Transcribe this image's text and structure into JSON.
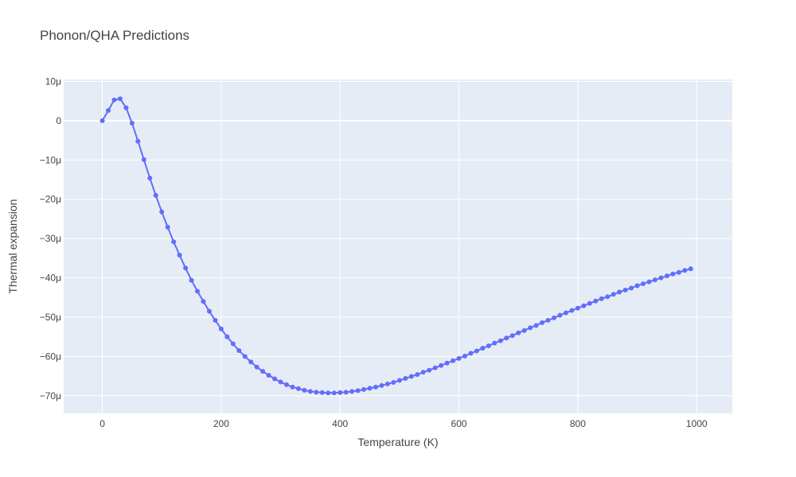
{
  "chart_data": {
    "type": "line",
    "title": "Phonon/QHA Predictions",
    "xlabel": "Temperature (K)",
    "ylabel": "Thermal expansion",
    "xlim": [
      -65,
      1060
    ],
    "ylim": [
      -74.5,
      10.5
    ],
    "x_ticks": [
      0,
      200,
      400,
      600,
      800,
      1000
    ],
    "x_tick_labels": [
      "0",
      "200",
      "400",
      "600",
      "800",
      "1000"
    ],
    "y_ticks": [
      10,
      0,
      -10,
      -20,
      -30,
      -40,
      -50,
      -60,
      -70
    ],
    "y_tick_labels": [
      "10μ",
      "0",
      "−10μ",
      "−20μ",
      "−30μ",
      "−40μ",
      "−50μ",
      "−60μ",
      "−70μ"
    ],
    "y_unit": "μ",
    "grid": true,
    "colors": {
      "line": "#636efa",
      "plot_bg": "#e5ecf6",
      "grid": "#ffffff"
    },
    "series": [
      {
        "x": [
          0,
          10,
          20,
          30,
          40,
          50,
          60,
          70,
          80,
          90,
          100,
          110,
          120,
          130,
          140,
          150,
          160,
          170,
          180,
          190,
          200,
          210,
          220,
          230,
          240,
          250,
          260,
          270,
          280,
          290,
          300,
          310,
          320,
          330,
          340,
          350,
          360,
          370,
          380,
          390,
          400,
          410,
          420,
          430,
          440,
          450,
          460,
          470,
          480,
          490,
          500,
          510,
          520,
          530,
          540,
          550,
          560,
          570,
          580,
          590,
          600,
          610,
          620,
          630,
          640,
          650,
          660,
          670,
          680,
          690,
          700,
          710,
          720,
          730,
          740,
          750,
          760,
          770,
          780,
          790,
          800,
          810,
          820,
          830,
          840,
          850,
          860,
          870,
          880,
          890,
          900,
          910,
          920,
          930,
          940,
          950,
          960,
          970,
          980,
          990
        ],
        "y": [
          0,
          2.6,
          5.3,
          5.6,
          3.3,
          -0.6,
          -5.2,
          -9.9,
          -14.6,
          -19.0,
          -23.2,
          -27.1,
          -30.8,
          -34.2,
          -37.5,
          -40.6,
          -43.4,
          -46.0,
          -48.5,
          -50.8,
          -53.0,
          -55.0,
          -56.8,
          -58.5,
          -60.0,
          -61.4,
          -62.7,
          -63.8,
          -64.8,
          -65.7,
          -66.5,
          -67.2,
          -67.8,
          -68.2,
          -68.6,
          -68.9,
          -69.1,
          -69.2,
          -69.3,
          -69.3,
          -69.2,
          -69.1,
          -68.9,
          -68.7,
          -68.4,
          -68.1,
          -67.8,
          -67.4,
          -67.0,
          -66.6,
          -66.1,
          -65.6,
          -65.1,
          -64.6,
          -64.0,
          -63.5,
          -62.9,
          -62.3,
          -61.7,
          -61.1,
          -60.5,
          -59.9,
          -59.2,
          -58.6,
          -57.9,
          -57.3,
          -56.6,
          -56.0,
          -55.3,
          -54.7,
          -54.0,
          -53.4,
          -52.7,
          -52.1,
          -51.4,
          -50.8,
          -50.2,
          -49.5,
          -48.9,
          -48.3,
          -47.7,
          -47.1,
          -46.5,
          -45.9,
          -45.3,
          -44.8,
          -44.2,
          -43.6,
          -43.1,
          -42.6,
          -42.0,
          -41.5,
          -41.0,
          -40.5,
          -40.0,
          -39.5,
          -39.0,
          -38.6,
          -38.1,
          -37.7
        ]
      }
    ]
  }
}
